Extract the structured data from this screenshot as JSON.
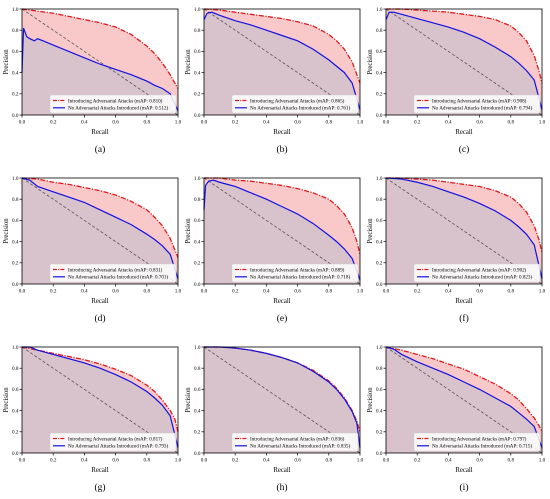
{
  "figure": {
    "axis_xlabel": "Recall",
    "axis_ylabel": "Precision",
    "ticks": [
      "0.0",
      "0.2",
      "0.4",
      "0.6",
      "0.8",
      "1.0"
    ],
    "colors": {
      "adversarial": "#e0191b",
      "adversarial_fill": "#f9c8c8",
      "baseline": "#1212e0",
      "baseline_fill": "#d8c2cc",
      "diagonal": "#555555",
      "axes": "#000000"
    }
  },
  "chart_data": [
    {
      "type": "line",
      "panel_label": "(a)",
      "xlabel": "Recall",
      "ylabel": "Precision",
      "xlim": [
        0,
        1
      ],
      "ylim": [
        0,
        1
      ],
      "legend": "bottom-center",
      "series": [
        {
          "name": "Introducing Adversarial Attacks (mAP: 0.810)",
          "x": [
            0,
            0.1,
            0.2,
            0.3,
            0.4,
            0.5,
            0.6,
            0.7,
            0.8,
            0.85,
            0.9,
            0.95,
            0.98,
            1.0
          ],
          "y": [
            1.0,
            0.98,
            0.96,
            0.93,
            0.9,
            0.87,
            0.83,
            0.76,
            0.65,
            0.58,
            0.49,
            0.38,
            0.3,
            0.25
          ]
        },
        {
          "name": "No Adversarial Attacks Introduced (mAP: 0.512)",
          "x": [
            0,
            0.01,
            0.03,
            0.05,
            0.08,
            0.1,
            0.15,
            0.2,
            0.3,
            0.4,
            0.5,
            0.6,
            0.7,
            0.8,
            0.85,
            0.9,
            0.95,
            1.0
          ],
          "y": [
            0.4,
            0.82,
            0.74,
            0.72,
            0.7,
            0.72,
            0.69,
            0.66,
            0.6,
            0.54,
            0.48,
            0.43,
            0.38,
            0.32,
            0.28,
            0.25,
            0.2,
            0.04
          ]
        }
      ]
    },
    {
      "type": "line",
      "panel_label": "(b)",
      "xlabel": "Recall",
      "ylabel": "Precision",
      "xlim": [
        0,
        1
      ],
      "ylim": [
        0,
        1
      ],
      "legend": "bottom-center",
      "series": [
        {
          "name": "Introducing Adversarial Attacks (mAP: 0.865)",
          "x": [
            0,
            0.1,
            0.2,
            0.3,
            0.4,
            0.5,
            0.6,
            0.7,
            0.8,
            0.85,
            0.9,
            0.95,
            0.98,
            1.0
          ],
          "y": [
            1.0,
            0.99,
            0.97,
            0.95,
            0.93,
            0.91,
            0.88,
            0.84,
            0.76,
            0.7,
            0.62,
            0.5,
            0.38,
            0.3
          ]
        },
        {
          "name": "No Adversarial Attacks Introduced (mAP: 0.761)",
          "x": [
            0,
            0.02,
            0.05,
            0.1,
            0.2,
            0.3,
            0.4,
            0.5,
            0.6,
            0.7,
            0.8,
            0.85,
            0.9,
            0.95,
            1.0
          ],
          "y": [
            0.9,
            0.96,
            0.97,
            0.94,
            0.89,
            0.85,
            0.8,
            0.75,
            0.7,
            0.62,
            0.52,
            0.46,
            0.4,
            0.3,
            0.05
          ]
        }
      ]
    },
    {
      "type": "line",
      "panel_label": "(c)",
      "xlabel": "Recall",
      "ylabel": "Precision",
      "xlim": [
        0,
        1
      ],
      "ylim": [
        0,
        1
      ],
      "legend": "bottom-center",
      "series": [
        {
          "name": "Introducing Adversarial Attacks (mAP: 0.908)",
          "x": [
            0,
            0.1,
            0.2,
            0.3,
            0.4,
            0.5,
            0.6,
            0.7,
            0.8,
            0.85,
            0.9,
            0.95,
            0.98,
            1.0
          ],
          "y": [
            1.0,
            1.0,
            0.99,
            0.98,
            0.97,
            0.95,
            0.93,
            0.9,
            0.84,
            0.78,
            0.7,
            0.56,
            0.42,
            0.3
          ]
        },
        {
          "name": "No Adversarial Attacks Introduced (mAP: 0.794)",
          "x": [
            0,
            0.02,
            0.05,
            0.1,
            0.2,
            0.3,
            0.4,
            0.5,
            0.6,
            0.7,
            0.8,
            0.85,
            0.9,
            0.95,
            1.0
          ],
          "y": [
            0.9,
            0.97,
            0.97,
            0.95,
            0.91,
            0.87,
            0.83,
            0.78,
            0.72,
            0.64,
            0.55,
            0.49,
            0.42,
            0.33,
            0.05
          ]
        }
      ]
    },
    {
      "type": "line",
      "panel_label": "(d)",
      "xlabel": "Recall",
      "ylabel": "Precision",
      "xlim": [
        0,
        1
      ],
      "ylim": [
        0,
        1
      ],
      "legend": "bottom-center",
      "series": [
        {
          "name": "Introducing Adversarial Attacks (mAP: 0.831)",
          "x": [
            0,
            0.1,
            0.2,
            0.3,
            0.4,
            0.5,
            0.6,
            0.7,
            0.8,
            0.85,
            0.9,
            0.95,
            0.98,
            1.0
          ],
          "y": [
            1.0,
            0.99,
            0.96,
            0.94,
            0.91,
            0.88,
            0.84,
            0.78,
            0.7,
            0.63,
            0.55,
            0.43,
            0.32,
            0.25
          ]
        },
        {
          "name": "No Adversarial Attacks Introduced (mAP: 0.701)",
          "x": [
            0,
            0.05,
            0.1,
            0.2,
            0.3,
            0.4,
            0.5,
            0.6,
            0.7,
            0.8,
            0.85,
            0.9,
            0.95,
            1.0
          ],
          "y": [
            1.0,
            0.98,
            0.92,
            0.87,
            0.82,
            0.77,
            0.7,
            0.63,
            0.56,
            0.47,
            0.42,
            0.36,
            0.28,
            0.05
          ]
        }
      ]
    },
    {
      "type": "line",
      "panel_label": "(e)",
      "xlabel": "Recall",
      "ylabel": "Precision",
      "xlim": [
        0,
        1
      ],
      "ylim": [
        0,
        1
      ],
      "legend": "bottom-center",
      "series": [
        {
          "name": "Introducing Adversarial Attacks (mAP: 0.889)",
          "x": [
            0,
            0.1,
            0.2,
            0.3,
            0.4,
            0.5,
            0.6,
            0.7,
            0.8,
            0.85,
            0.9,
            0.95,
            0.98,
            1.0
          ],
          "y": [
            1.0,
            1.0,
            0.98,
            0.97,
            0.95,
            0.93,
            0.9,
            0.86,
            0.8,
            0.74,
            0.66,
            0.53,
            0.4,
            0.28
          ]
        },
        {
          "name": "No Adversarial Attacks Introduced (mAP: 0.718)",
          "x": [
            0,
            0.01,
            0.03,
            0.06,
            0.1,
            0.15,
            0.2,
            0.3,
            0.4,
            0.5,
            0.6,
            0.7,
            0.8,
            0.85,
            0.9,
            0.95,
            1.0
          ],
          "y": [
            0.7,
            0.93,
            0.97,
            0.98,
            0.96,
            0.94,
            0.92,
            0.86,
            0.8,
            0.73,
            0.66,
            0.57,
            0.46,
            0.4,
            0.33,
            0.24,
            0.04
          ]
        }
      ]
    },
    {
      "type": "line",
      "panel_label": "(f)",
      "xlabel": "Recall",
      "ylabel": "Precision",
      "xlim": [
        0,
        1
      ],
      "ylim": [
        0,
        1
      ],
      "legend": "bottom-center",
      "series": [
        {
          "name": "Introducing Adversarial Attacks (mAP: 0.902)",
          "x": [
            0,
            0.1,
            0.2,
            0.3,
            0.4,
            0.5,
            0.6,
            0.7,
            0.8,
            0.85,
            0.9,
            0.95,
            0.98,
            1.0
          ],
          "y": [
            1.0,
            1.0,
            0.99,
            0.98,
            0.96,
            0.94,
            0.92,
            0.88,
            0.82,
            0.76,
            0.68,
            0.55,
            0.42,
            0.3
          ]
        },
        {
          "name": "No Adversarial Attacks Introduced (mAP: 0.823)",
          "x": [
            0,
            0.1,
            0.2,
            0.3,
            0.4,
            0.5,
            0.6,
            0.7,
            0.8,
            0.85,
            0.9,
            0.95,
            1.0
          ],
          "y": [
            1.0,
            0.99,
            0.96,
            0.92,
            0.87,
            0.82,
            0.76,
            0.69,
            0.6,
            0.54,
            0.47,
            0.37,
            0.05
          ]
        }
      ]
    },
    {
      "type": "line",
      "panel_label": "(g)",
      "xlabel": "Recall",
      "ylabel": "Precision",
      "xlim": [
        0,
        1
      ],
      "ylim": [
        0,
        1
      ],
      "legend": "bottom-center",
      "series": [
        {
          "name": "Introducing Adversarial Attacks (mAP: 0.817)",
          "x": [
            0,
            0.1,
            0.2,
            0.3,
            0.4,
            0.5,
            0.6,
            0.7,
            0.8,
            0.85,
            0.9,
            0.95,
            0.98,
            1.0
          ],
          "y": [
            1.0,
            0.97,
            0.94,
            0.91,
            0.88,
            0.84,
            0.79,
            0.73,
            0.64,
            0.58,
            0.5,
            0.4,
            0.32,
            0.2
          ]
        },
        {
          "name": "No Adversarial Attacks Introduced (mAP: 0.793)",
          "x": [
            0,
            0.05,
            0.1,
            0.2,
            0.3,
            0.4,
            0.5,
            0.6,
            0.7,
            0.8,
            0.85,
            0.9,
            0.95,
            1.0
          ],
          "y": [
            1.0,
            1.0,
            0.97,
            0.93,
            0.89,
            0.85,
            0.8,
            0.74,
            0.67,
            0.58,
            0.52,
            0.45,
            0.35,
            0.05
          ]
        }
      ]
    },
    {
      "type": "line",
      "panel_label": "(h)",
      "xlabel": "Recall",
      "ylabel": "Precision",
      "xlim": [
        0,
        1
      ],
      "ylim": [
        0,
        1
      ],
      "legend": "bottom-center",
      "series": [
        {
          "name": "Introducing Adversarial Attacks (mAP: 0.836)",
          "x": [
            0,
            0.1,
            0.2,
            0.3,
            0.4,
            0.5,
            0.6,
            0.7,
            0.8,
            0.85,
            0.9,
            0.95,
            0.98,
            1.0
          ],
          "y": [
            1.0,
            1.0,
            0.99,
            0.97,
            0.94,
            0.9,
            0.85,
            0.78,
            0.68,
            0.61,
            0.52,
            0.4,
            0.3,
            0.2
          ]
        },
        {
          "name": "No Adversarial Attacks Introduced (mAP: 0.835)",
          "x": [
            0,
            0.1,
            0.2,
            0.3,
            0.4,
            0.5,
            0.6,
            0.7,
            0.8,
            0.85,
            0.9,
            0.95,
            0.98,
            1.0
          ],
          "y": [
            1.0,
            1.0,
            0.99,
            0.97,
            0.94,
            0.9,
            0.85,
            0.77,
            0.67,
            0.6,
            0.51,
            0.39,
            0.28,
            0.05
          ]
        }
      ]
    },
    {
      "type": "line",
      "panel_label": "(i)",
      "xlabel": "Recall",
      "ylabel": "Precision",
      "xlim": [
        0,
        1
      ],
      "ylim": [
        0,
        1
      ],
      "legend": "bottom-center",
      "series": [
        {
          "name": "Introducing Adversarial Attacks (mAP: 0.797)",
          "x": [
            0,
            0.1,
            0.2,
            0.3,
            0.4,
            0.5,
            0.6,
            0.7,
            0.8,
            0.85,
            0.9,
            0.95,
            0.98,
            1.0
          ],
          "y": [
            1.0,
            0.97,
            0.93,
            0.89,
            0.84,
            0.79,
            0.72,
            0.65,
            0.56,
            0.5,
            0.42,
            0.33,
            0.26,
            0.2
          ]
        },
        {
          "name": "No Adversarial Attacks Introduced (mAP: 0.715)",
          "x": [
            0,
            0.05,
            0.1,
            0.2,
            0.3,
            0.4,
            0.5,
            0.6,
            0.7,
            0.8,
            0.85,
            0.9,
            0.95,
            1.0
          ],
          "y": [
            1.0,
            0.98,
            0.93,
            0.86,
            0.8,
            0.74,
            0.67,
            0.6,
            0.52,
            0.44,
            0.38,
            0.32,
            0.25,
            0.05
          ]
        }
      ]
    }
  ]
}
